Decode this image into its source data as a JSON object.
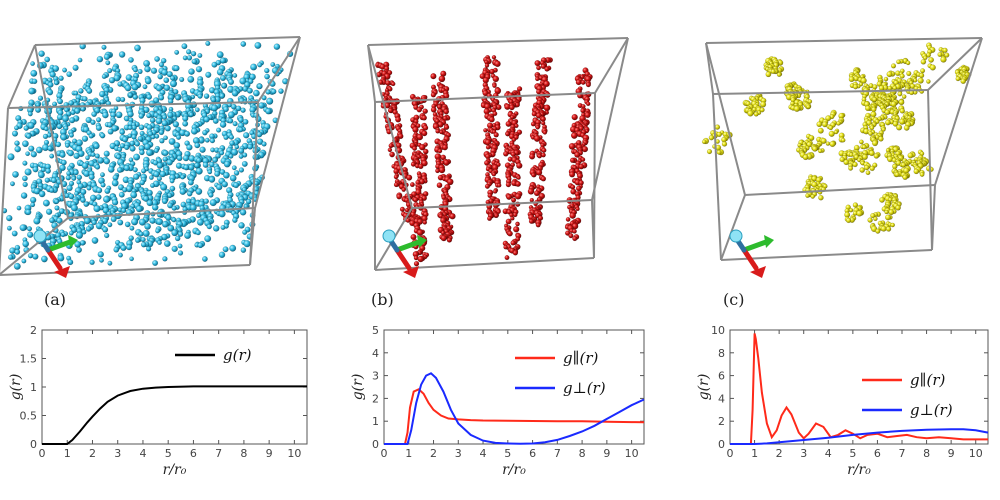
{
  "panels": [
    {
      "label": "(a)",
      "cloud": "dispersed"
    },
    {
      "label": "(b)",
      "cloud": "columns"
    },
    {
      "label": "(c)",
      "cloud": "clusters"
    }
  ],
  "chart_data": [
    {
      "type": "line",
      "xlabel": "r/r₀",
      "ylabel": "g(r)",
      "xlim": [
        0,
        10.5
      ],
      "ylim": [
        0,
        2
      ],
      "xticks": [
        0,
        1,
        2,
        3,
        4,
        5,
        6,
        7,
        8,
        9,
        10
      ],
      "yticks": [
        0,
        0.5,
        1,
        1.5,
        2
      ],
      "legend": "top-right",
      "series": [
        {
          "name": "g(r)",
          "color": "#000000",
          "x": [
            0,
            1.0,
            1.2,
            1.5,
            1.8,
            2.0,
            2.3,
            2.6,
            3.0,
            3.5,
            4.0,
            4.5,
            5.0,
            6.0,
            7.0,
            8.0,
            9.0,
            10.0,
            10.5
          ],
          "y": [
            0,
            0,
            0.07,
            0.22,
            0.38,
            0.48,
            0.62,
            0.74,
            0.85,
            0.93,
            0.97,
            0.99,
            1.0,
            1.01,
            1.01,
            1.01,
            1.01,
            1.01,
            1.01
          ]
        }
      ]
    },
    {
      "type": "line",
      "xlabel": "r/r₀",
      "ylabel": "g(r)",
      "xlim": [
        0,
        10.5
      ],
      "ylim": [
        0,
        5
      ],
      "xticks": [
        0,
        1,
        2,
        3,
        4,
        5,
        6,
        7,
        8,
        9,
        10
      ],
      "yticks": [
        0,
        1,
        2,
        3,
        4,
        5
      ],
      "legend": "top-right",
      "series": [
        {
          "name": "g∥(r)",
          "color": "#ff2a1a",
          "x": [
            0,
            0.85,
            0.95,
            1.05,
            1.2,
            1.4,
            1.6,
            1.8,
            2.0,
            2.3,
            2.6,
            3.0,
            3.5,
            4.0,
            5.0,
            6.0,
            7.0,
            8.0,
            9.0,
            10.0,
            10.5
          ],
          "y": [
            0,
            0,
            0.5,
            1.6,
            2.3,
            2.4,
            2.2,
            1.8,
            1.5,
            1.25,
            1.12,
            1.08,
            1.05,
            1.03,
            1.02,
            1.01,
            1.0,
            1.0,
            0.98,
            0.96,
            0.95
          ]
        },
        {
          "name": "g⊥(r)",
          "color": "#1a2aff",
          "x": [
            0,
            0.95,
            1.1,
            1.3,
            1.5,
            1.7,
            1.9,
            2.1,
            2.4,
            2.7,
            3.0,
            3.5,
            4.0,
            4.5,
            5.0,
            5.5,
            6.0,
            6.5,
            7.0,
            7.5,
            8.0,
            8.5,
            9.0,
            9.5,
            10.0,
            10.5
          ],
          "y": [
            0,
            0,
            0.6,
            1.8,
            2.6,
            3.0,
            3.1,
            2.9,
            2.3,
            1.5,
            0.9,
            0.4,
            0.15,
            0.05,
            0.02,
            0.01,
            0.02,
            0.08,
            0.18,
            0.35,
            0.55,
            0.8,
            1.1,
            1.4,
            1.7,
            1.95
          ]
        }
      ]
    },
    {
      "type": "line",
      "xlabel": "r/r₀",
      "ylabel": "g(r)",
      "xlim": [
        0,
        10.5
      ],
      "ylim": [
        0,
        10
      ],
      "xticks": [
        0,
        1,
        2,
        3,
        4,
        5,
        6,
        7,
        8,
        9,
        10
      ],
      "yticks": [
        0,
        2,
        4,
        6,
        8,
        10
      ],
      "legend": "center-right",
      "series": [
        {
          "name": "g∥(r)",
          "color": "#ff2a1a",
          "x": [
            0,
            0.85,
            0.92,
            1.0,
            1.05,
            1.15,
            1.3,
            1.5,
            1.7,
            1.9,
            2.1,
            2.3,
            2.5,
            2.8,
            3.0,
            3.2,
            3.5,
            3.8,
            4.1,
            4.4,
            4.7,
            5.0,
            5.3,
            5.6,
            6.0,
            6.4,
            6.8,
            7.2,
            7.6,
            8.0,
            8.5,
            9.0,
            9.5,
            10.0,
            10.5
          ],
          "y": [
            0,
            0,
            3.0,
            9.7,
            9.2,
            7.5,
            4.5,
            1.8,
            0.6,
            1.2,
            2.5,
            3.2,
            2.6,
            1.0,
            0.5,
            0.9,
            1.8,
            1.5,
            0.6,
            0.8,
            1.2,
            0.9,
            0.5,
            0.8,
            0.9,
            0.6,
            0.7,
            0.8,
            0.6,
            0.5,
            0.6,
            0.5,
            0.4,
            0.4,
            0.4
          ]
        },
        {
          "name": "g⊥(r)",
          "color": "#1a2aff",
          "x": [
            0,
            1.0,
            1.5,
            2.0,
            3.0,
            4.0,
            5.0,
            6.0,
            7.0,
            8.0,
            9.0,
            9.5,
            10.0,
            10.5
          ],
          "y": [
            0,
            0,
            0.05,
            0.15,
            0.35,
            0.55,
            0.8,
            1.0,
            1.15,
            1.25,
            1.3,
            1.3,
            1.2,
            1.0
          ]
        }
      ]
    }
  ]
}
